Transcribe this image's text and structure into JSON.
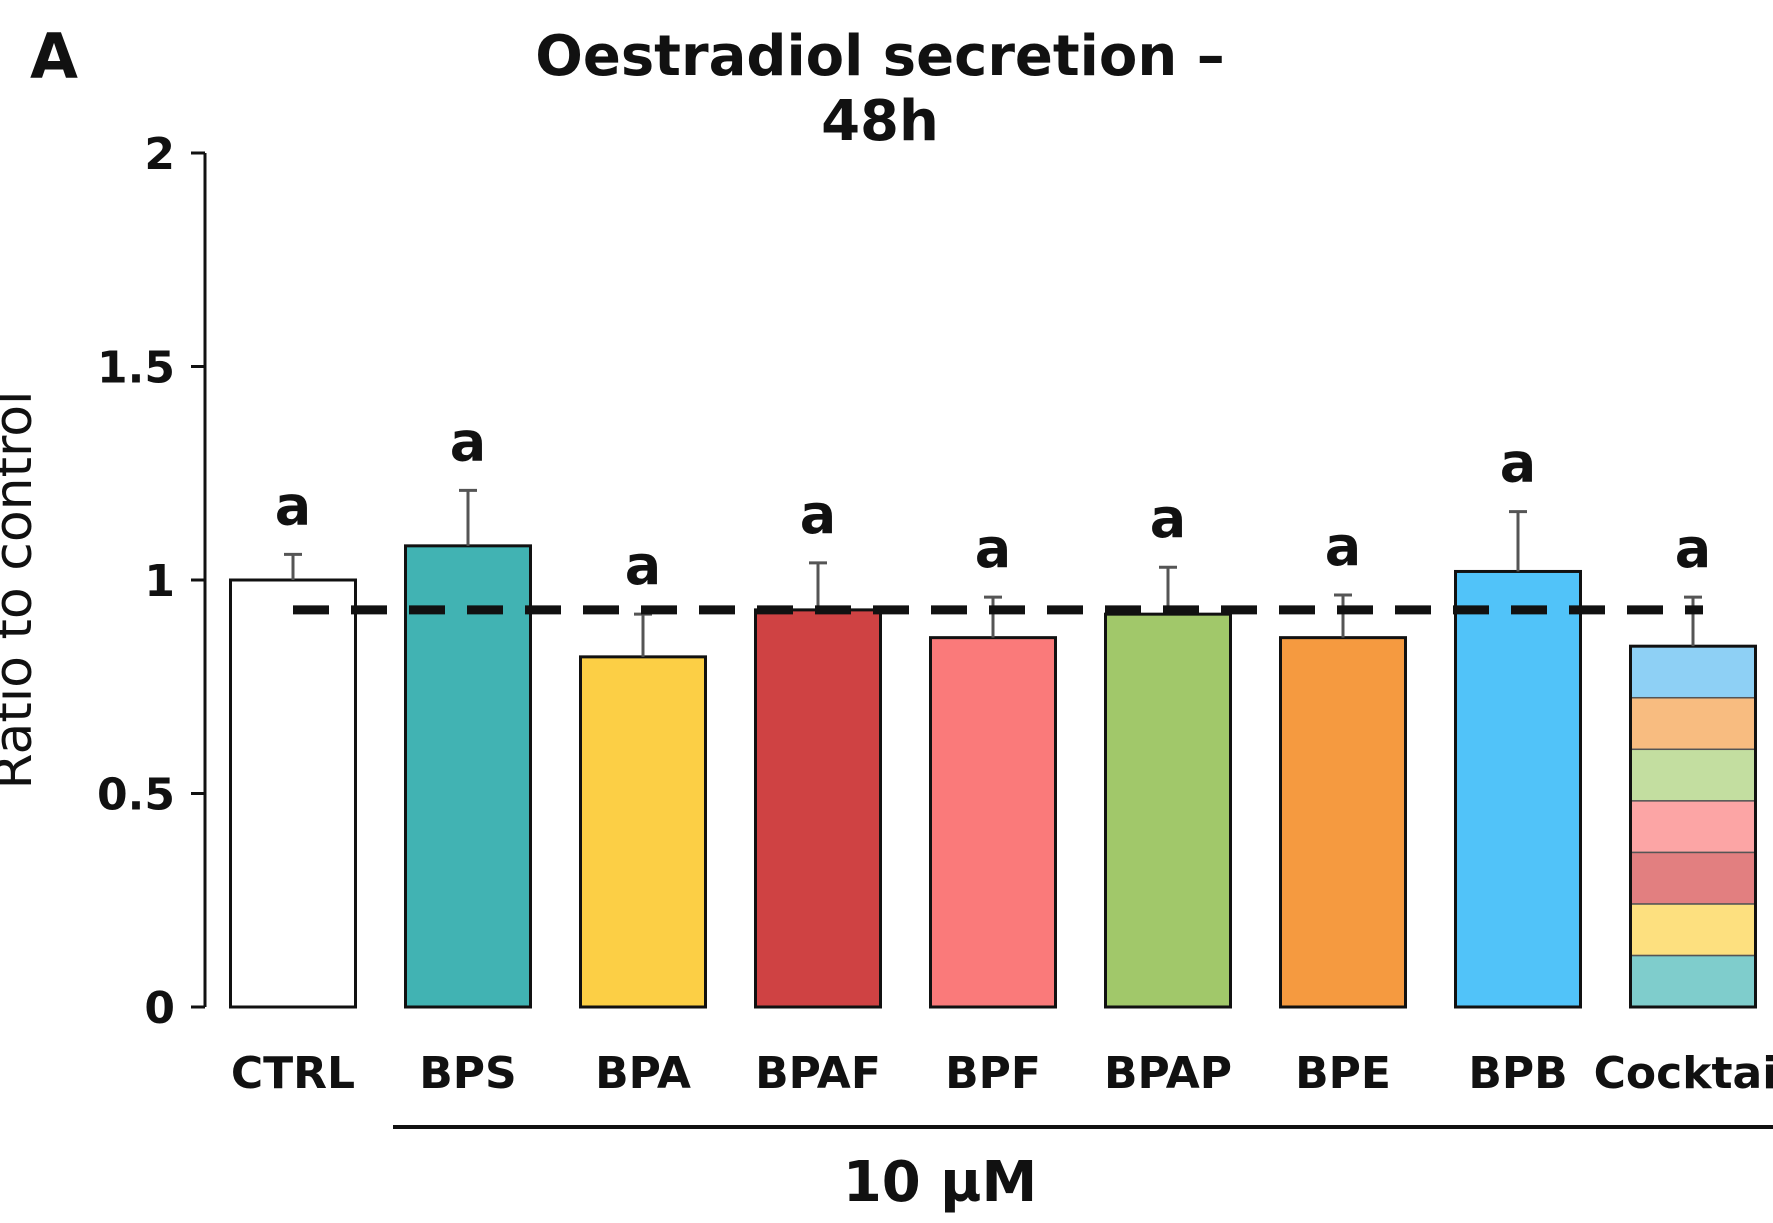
{
  "panel_label": "A",
  "chart_data": {
    "type": "bar",
    "title": "Oestradiol secretion – 48h",
    "ylabel": "Ratio to control",
    "xlabel": "",
    "group_label": "10 µM",
    "ylim": [
      0,
      2
    ],
    "yticks": [
      "0",
      "0.5",
      "1",
      "1.5",
      "2"
    ],
    "ytick_values": [
      0,
      0.5,
      1,
      1.5,
      2
    ],
    "grid": false,
    "reference_line": 0.93,
    "categories": [
      "CTRL",
      "BPS",
      "BPA",
      "BPAF",
      "BPF",
      "BPAP",
      "BPE",
      "BPB",
      "Cocktail"
    ],
    "values": [
      1.0,
      1.08,
      0.82,
      0.93,
      0.865,
      0.92,
      0.865,
      1.02,
      0.845
    ],
    "errors": [
      0.06,
      0.13,
      0.1,
      0.11,
      0.095,
      0.11,
      0.1,
      0.14,
      0.115
    ],
    "significance": [
      "a",
      "a",
      "a",
      "a",
      "a",
      "a",
      "a",
      "a",
      "a"
    ],
    "colors": [
      "#ffffff",
      "#41b3b3",
      "#fccf45",
      "#cf4243",
      "#fa7a7a",
      "#a1c86a",
      "#f59a40",
      "#51c3f9",
      "#ffffff"
    ],
    "cocktail_stripes": [
      "#7fcdcc",
      "#fde07f",
      "#e27f80",
      "#fca5a5",
      "#c3dea0",
      "#f8bc80",
      "#8ed0f5"
    ]
  }
}
